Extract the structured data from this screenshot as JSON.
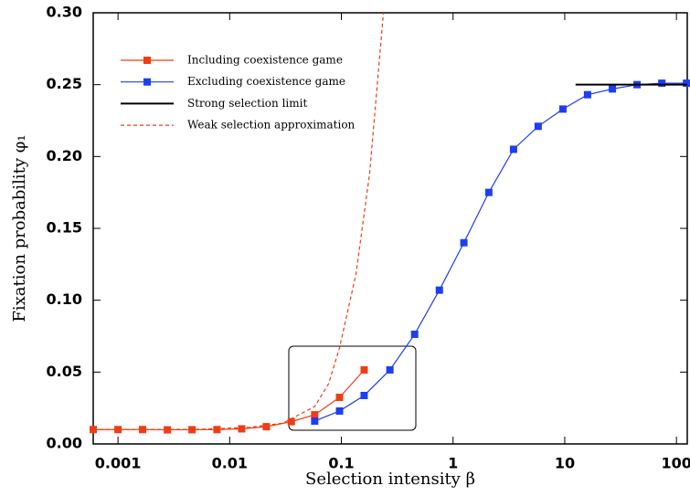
{
  "chart_data": {
    "type": "line",
    "xlabel": "Selection intensity β",
    "ylabel": "Fixation probability φ₁",
    "xscale": "log",
    "xlim": [
      0.0006,
      125
    ],
    "ylim": [
      0,
      0.3
    ],
    "xticks": [
      0.001,
      0.01,
      0.1,
      1,
      10,
      100
    ],
    "yticks": [
      {
        "value": 0,
        "label": "0.00"
      },
      {
        "value": 0.05,
        "label": "0.05"
      },
      {
        "value": 0.1,
        "label": "0.10"
      },
      {
        "value": 0.15,
        "label": "0.15"
      },
      {
        "value": 0.2,
        "label": "0.20"
      },
      {
        "value": 0.25,
        "label": "0.25"
      },
      {
        "value": 0.3,
        "label": "0.30"
      }
    ],
    "legend": "upper left",
    "series": [
      {
        "name": "Including coexistence game",
        "color": "#f03c14",
        "marker": "square",
        "dash": "solid",
        "x": [
          0.0006,
          0.001,
          0.00166,
          0.00277,
          0.0046,
          0.0077,
          0.0128,
          0.0213,
          0.0356,
          0.0577,
          0.0963,
          0.16
        ],
        "values": [
          0.01,
          0.01,
          0.01,
          0.0098,
          0.0099,
          0.01,
          0.0105,
          0.012,
          0.0155,
          0.0203,
          0.0324,
          0.0515
        ]
      },
      {
        "name": "Excluding coexistence game",
        "color": "#1f3ef0",
        "marker": "square",
        "dash": "solid",
        "x": [
          0.0577,
          0.0963,
          0.16,
          0.272,
          0.453,
          0.754,
          1.25,
          2.09,
          3.48,
          5.78,
          9.63,
          16,
          26.7,
          44.4,
          74,
          123
        ],
        "values": [
          0.0159,
          0.0229,
          0.0337,
          0.0515,
          0.0763,
          0.107,
          0.14,
          0.175,
          0.205,
          0.221,
          0.233,
          0.243,
          0.247,
          0.25,
          0.251,
          0.251
        ]
      },
      {
        "name": "Strong selection limit",
        "color": "#000000",
        "marker": "none",
        "dash": "solid",
        "x": [
          12.5,
          125
        ],
        "values": [
          0.25,
          0.25
        ]
      },
      {
        "name": "Weak selection approximation",
        "color": "#f03c14",
        "marker": "none",
        "dash": "dashed",
        "x": [
          0.0006,
          0.005,
          0.015,
          0.03,
          0.0577,
          0.077,
          0.0963,
          0.135,
          0.179,
          0.238
        ],
        "values": [
          0.01,
          0.0101,
          0.0115,
          0.0145,
          0.026,
          0.042,
          0.067,
          0.118,
          0.188,
          0.3
        ]
      }
    ]
  }
}
